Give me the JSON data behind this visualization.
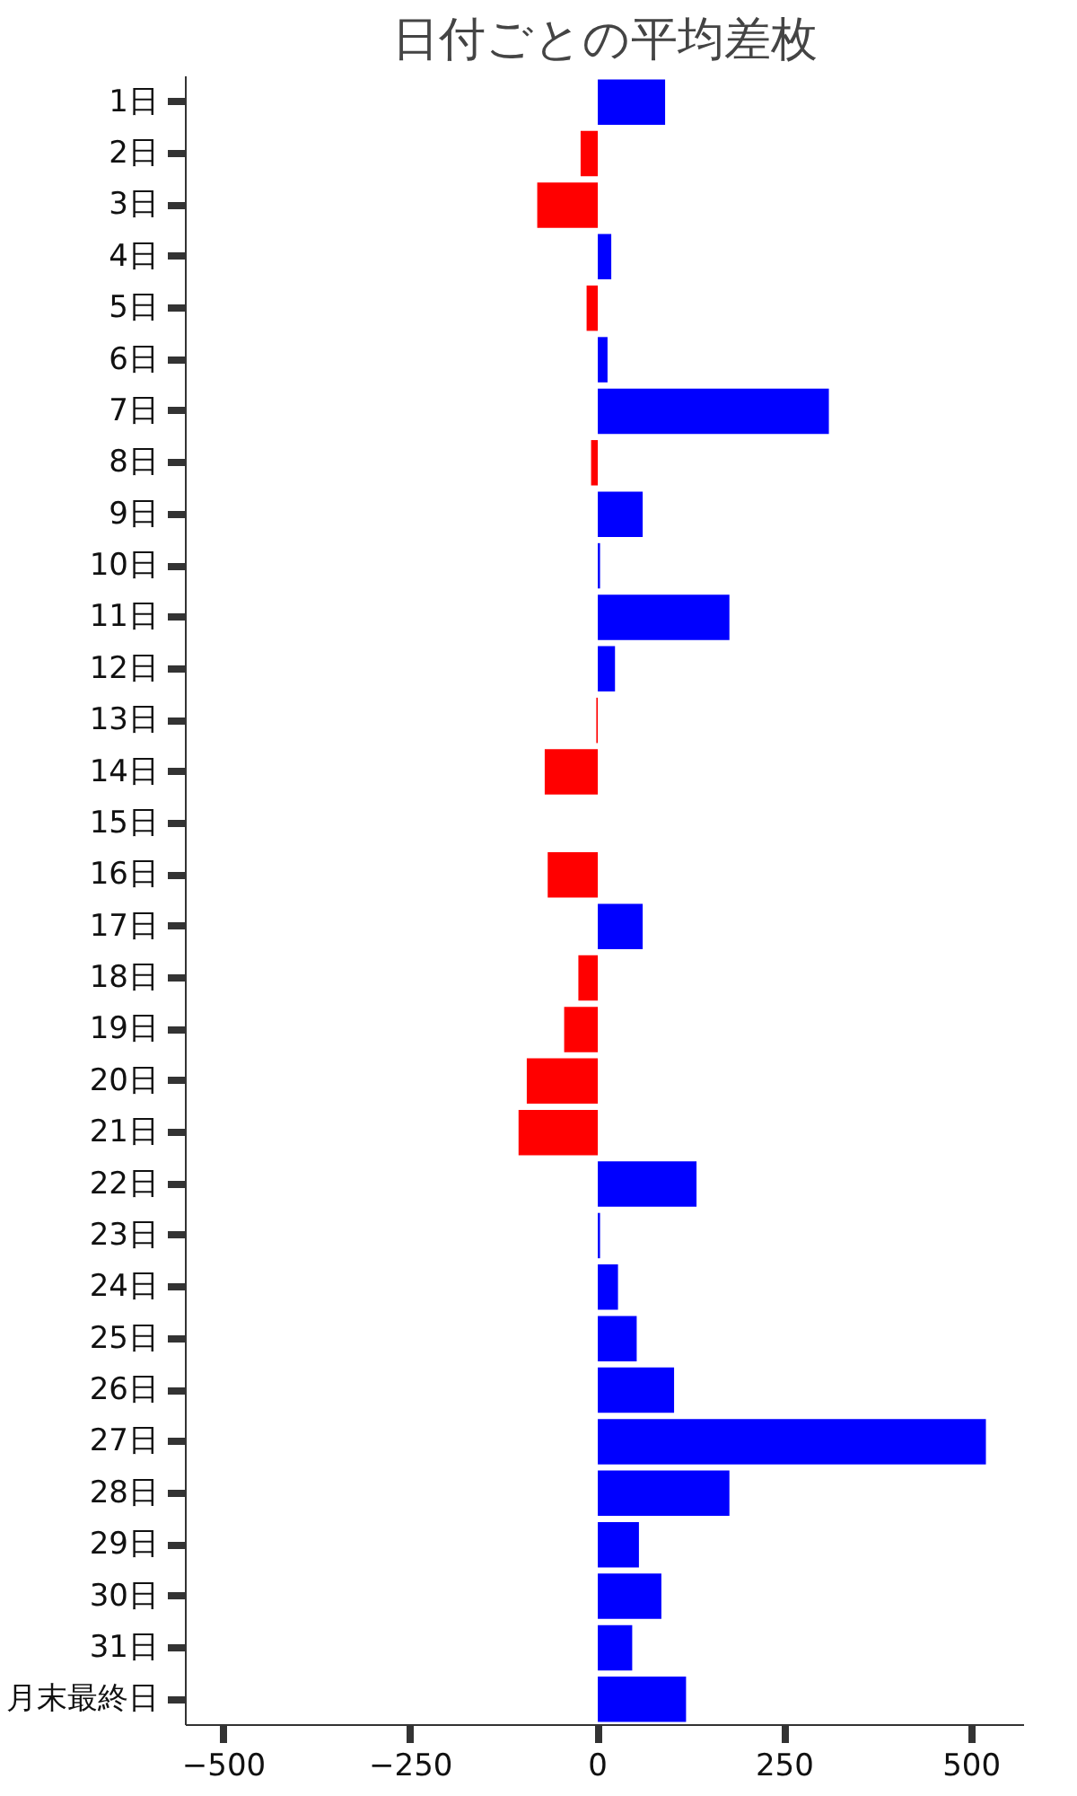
{
  "chart_data": {
    "type": "bar",
    "orientation": "horizontal",
    "title": "日付ごとの平均差枚",
    "categories": [
      "1日",
      "2日",
      "3日",
      "4日",
      "5日",
      "6日",
      "7日",
      "8日",
      "9日",
      "10日",
      "11日",
      "12日",
      "13日",
      "14日",
      "15日",
      "16日",
      "17日",
      "18日",
      "19日",
      "20日",
      "21日",
      "22日",
      "23日",
      "24日",
      "25日",
      "26日",
      "27日",
      "28日",
      "29日",
      "30日",
      "31日",
      "月末最終日"
    ],
    "values": [
      90,
      -23,
      -81,
      18,
      -15,
      13,
      309,
      -9,
      60,
      3,
      176,
      23,
      -2,
      -71,
      0,
      -67,
      60,
      -26,
      -45,
      -95,
      -106,
      132,
      3,
      27,
      52,
      102,
      519,
      176,
      55,
      85,
      46,
      118
    ],
    "colors": [
      "#0000ff",
      "#ff0000",
      "#ff0000",
      "#0000ff",
      "#ff0000",
      "#0000ff",
      "#0000ff",
      "#ff0000",
      "#0000ff",
      "#0000ff",
      "#0000ff",
      "#0000ff",
      "#ff0000",
      "#ff0000",
      "#0000ff",
      "#ff0000",
      "#0000ff",
      "#ff0000",
      "#ff0000",
      "#ff0000",
      "#ff0000",
      "#0000ff",
      "#0000ff",
      "#0000ff",
      "#0000ff",
      "#0000ff",
      "#0000ff",
      "#0000ff",
      "#0000ff",
      "#0000ff",
      "#0000ff",
      "#0000ff"
    ],
    "xlim": [
      -551,
      570
    ],
    "xticks": [
      -500,
      -250,
      0,
      250,
      500
    ],
    "grid": false
  }
}
